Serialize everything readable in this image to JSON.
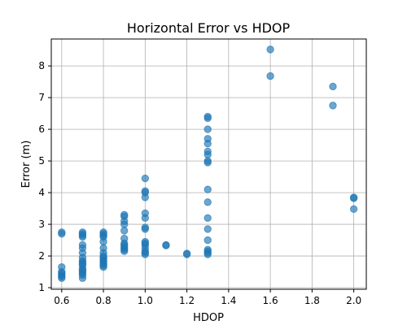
{
  "chart_data": {
    "type": "scatter",
    "title": "Horizontal Error vs HDOP",
    "xlabel": "HDOP",
    "ylabel": "Error (m)",
    "xlim": [
      0.55,
      2.06
    ],
    "ylim": [
      0.95,
      8.85
    ],
    "xticks": [
      0.6,
      0.8,
      1.0,
      1.2,
      1.4,
      1.6,
      1.8,
      2.0
    ],
    "xtick_labels": [
      "0.6",
      "0.8",
      "1.0",
      "1.2",
      "1.4",
      "1.6",
      "1.8",
      "2.0"
    ],
    "yticks": [
      1,
      2,
      3,
      4,
      5,
      6,
      7,
      8
    ],
    "ytick_labels": [
      "1",
      "2",
      "3",
      "4",
      "5",
      "6",
      "7",
      "8"
    ],
    "grid": true,
    "marker_color": "#1f77b4",
    "marker_alpha": 0.65,
    "points": [
      {
        "x": 0.6,
        "y": 2.75
      },
      {
        "x": 0.6,
        "y": 2.7
      },
      {
        "x": 0.6,
        "y": 1.65
      },
      {
        "x": 0.6,
        "y": 1.5
      },
      {
        "x": 0.6,
        "y": 1.45
      },
      {
        "x": 0.6,
        "y": 1.4
      },
      {
        "x": 0.6,
        "y": 1.35
      },
      {
        "x": 0.6,
        "y": 1.3
      },
      {
        "x": 0.7,
        "y": 2.75
      },
      {
        "x": 0.7,
        "y": 2.7
      },
      {
        "x": 0.7,
        "y": 2.65
      },
      {
        "x": 0.7,
        "y": 2.6
      },
      {
        "x": 0.7,
        "y": 2.35
      },
      {
        "x": 0.7,
        "y": 2.25
      },
      {
        "x": 0.7,
        "y": 2.1
      },
      {
        "x": 0.7,
        "y": 1.95
      },
      {
        "x": 0.7,
        "y": 1.85
      },
      {
        "x": 0.7,
        "y": 1.8
      },
      {
        "x": 0.7,
        "y": 1.75
      },
      {
        "x": 0.7,
        "y": 1.7
      },
      {
        "x": 0.7,
        "y": 1.6
      },
      {
        "x": 0.7,
        "y": 1.55
      },
      {
        "x": 0.7,
        "y": 1.5
      },
      {
        "x": 0.7,
        "y": 1.45
      },
      {
        "x": 0.7,
        "y": 1.4
      },
      {
        "x": 0.7,
        "y": 1.3
      },
      {
        "x": 0.8,
        "y": 2.75
      },
      {
        "x": 0.8,
        "y": 2.7
      },
      {
        "x": 0.8,
        "y": 2.65
      },
      {
        "x": 0.8,
        "y": 2.6
      },
      {
        "x": 0.8,
        "y": 2.45
      },
      {
        "x": 0.8,
        "y": 2.25
      },
      {
        "x": 0.8,
        "y": 2.1
      },
      {
        "x": 0.8,
        "y": 2.0
      },
      {
        "x": 0.8,
        "y": 1.95
      },
      {
        "x": 0.8,
        "y": 1.9
      },
      {
        "x": 0.8,
        "y": 1.85
      },
      {
        "x": 0.8,
        "y": 1.8
      },
      {
        "x": 0.8,
        "y": 1.75
      },
      {
        "x": 0.8,
        "y": 1.7
      },
      {
        "x": 0.8,
        "y": 1.65
      },
      {
        "x": 0.9,
        "y": 3.3
      },
      {
        "x": 0.9,
        "y": 3.25
      },
      {
        "x": 0.9,
        "y": 3.1
      },
      {
        "x": 0.9,
        "y": 3.0
      },
      {
        "x": 0.9,
        "y": 2.8
      },
      {
        "x": 0.9,
        "y": 2.55
      },
      {
        "x": 0.9,
        "y": 2.4
      },
      {
        "x": 0.9,
        "y": 2.35
      },
      {
        "x": 0.9,
        "y": 2.3
      },
      {
        "x": 0.9,
        "y": 2.25
      },
      {
        "x": 0.9,
        "y": 2.2
      },
      {
        "x": 0.9,
        "y": 2.15
      },
      {
        "x": 1.0,
        "y": 4.45
      },
      {
        "x": 1.0,
        "y": 4.05
      },
      {
        "x": 1.0,
        "y": 4.0
      },
      {
        "x": 1.0,
        "y": 3.85
      },
      {
        "x": 1.0,
        "y": 3.35
      },
      {
        "x": 1.0,
        "y": 3.2
      },
      {
        "x": 1.0,
        "y": 2.9
      },
      {
        "x": 1.0,
        "y": 2.85
      },
      {
        "x": 1.0,
        "y": 2.45
      },
      {
        "x": 1.0,
        "y": 2.4
      },
      {
        "x": 1.0,
        "y": 2.35
      },
      {
        "x": 1.0,
        "y": 2.25
      },
      {
        "x": 1.0,
        "y": 2.15
      },
      {
        "x": 1.0,
        "y": 2.1
      },
      {
        "x": 1.0,
        "y": 2.05
      },
      {
        "x": 1.1,
        "y": 2.35
      },
      {
        "x": 1.1,
        "y": 2.33
      },
      {
        "x": 1.2,
        "y": 2.08
      },
      {
        "x": 1.2,
        "y": 2.05
      },
      {
        "x": 1.3,
        "y": 6.4
      },
      {
        "x": 1.3,
        "y": 6.35
      },
      {
        "x": 1.3,
        "y": 6.0
      },
      {
        "x": 1.3,
        "y": 5.7
      },
      {
        "x": 1.3,
        "y": 5.55
      },
      {
        "x": 1.3,
        "y": 5.3
      },
      {
        "x": 1.3,
        "y": 5.2
      },
      {
        "x": 1.3,
        "y": 5.0
      },
      {
        "x": 1.3,
        "y": 4.95
      },
      {
        "x": 1.3,
        "y": 4.1
      },
      {
        "x": 1.3,
        "y": 3.7
      },
      {
        "x": 1.3,
        "y": 3.2
      },
      {
        "x": 1.3,
        "y": 2.85
      },
      {
        "x": 1.3,
        "y": 2.5
      },
      {
        "x": 1.3,
        "y": 2.2
      },
      {
        "x": 1.3,
        "y": 2.15
      },
      {
        "x": 1.3,
        "y": 2.1
      },
      {
        "x": 1.3,
        "y": 2.05
      },
      {
        "x": 1.6,
        "y": 8.52
      },
      {
        "x": 1.6,
        "y": 7.68
      },
      {
        "x": 1.9,
        "y": 7.35
      },
      {
        "x": 1.9,
        "y": 6.75
      },
      {
        "x": 2.0,
        "y": 3.85
      },
      {
        "x": 2.0,
        "y": 3.82
      },
      {
        "x": 2.0,
        "y": 3.48
      }
    ]
  }
}
